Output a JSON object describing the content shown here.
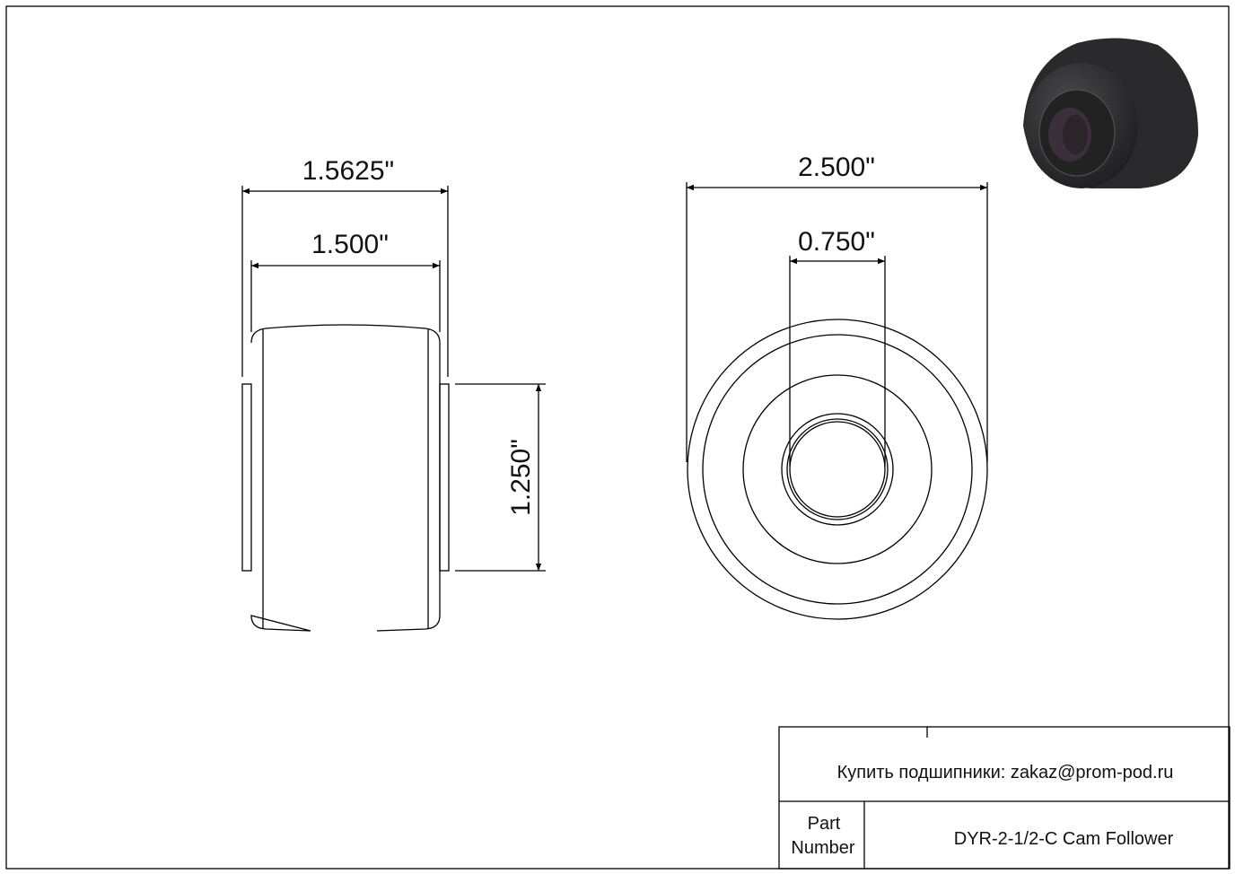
{
  "drawing": {
    "dimensions": {
      "overall_width": "1.5625\"",
      "roller_width": "1.500\"",
      "inner_height": "1.250\"",
      "outer_diameter": "2.500\"",
      "bore_diameter": "0.750\""
    },
    "render_colors": {
      "body": "#2a2a2c",
      "highlight": "#4a4a4e",
      "bore": "#3a2f3a"
    }
  },
  "title_block": {
    "buy_text": "Купить подшипники: zakaz@prom-pod.ru",
    "part_label_line1": "Part",
    "part_label_line2": "Number",
    "part_number": "DYR-2-1/2-C Cam Follower"
  }
}
